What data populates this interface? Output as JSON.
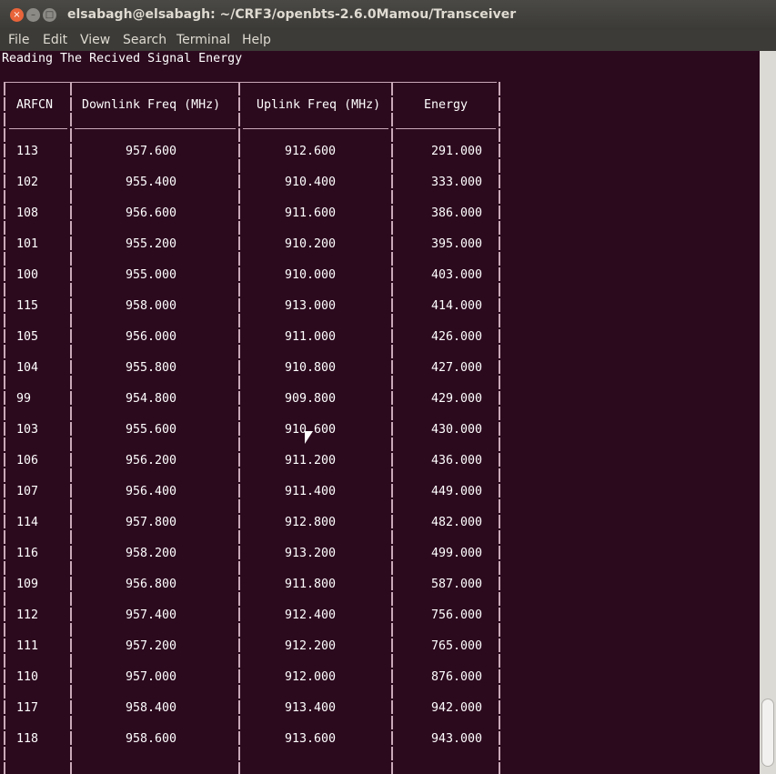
{
  "window": {
    "title": "elsabagh@elsabagh: ~/CRF3/openbts-2.6.0Mamou/Transceiver"
  },
  "menu": [
    "File",
    "Edit",
    "View",
    "Search",
    "Terminal",
    "Help"
  ],
  "terminal": {
    "heading": "Reading The Recived Signal Energy",
    "columns": [
      "ARFCN",
      "Downlink Freq (MHz)",
      "Uplink Freq (MHz)",
      "Energy"
    ],
    "rows": [
      [
        "113",
        "957.600",
        "912.600",
        "291.000"
      ],
      [
        "102",
        "955.400",
        "910.400",
        "333.000"
      ],
      [
        "108",
        "956.600",
        "911.600",
        "386.000"
      ],
      [
        "101",
        "955.200",
        "910.200",
        "395.000"
      ],
      [
        "100",
        "955.000",
        "910.000",
        "403.000"
      ],
      [
        "115",
        "958.000",
        "913.000",
        "414.000"
      ],
      [
        "105",
        "956.000",
        "911.000",
        "426.000"
      ],
      [
        "104",
        "955.800",
        "910.800",
        "427.000"
      ],
      [
        "99",
        "954.800",
        "909.800",
        "429.000"
      ],
      [
        "103",
        "955.600",
        "910.600",
        "430.000"
      ],
      [
        "106",
        "956.200",
        "911.200",
        "436.000"
      ],
      [
        "107",
        "956.400",
        "911.400",
        "449.000"
      ],
      [
        "114",
        "957.800",
        "912.800",
        "482.000"
      ],
      [
        "116",
        "958.200",
        "913.200",
        "499.000"
      ],
      [
        "109",
        "956.800",
        "911.800",
        "587.000"
      ],
      [
        "112",
        "957.400",
        "912.400",
        "756.000"
      ],
      [
        "111",
        "957.200",
        "912.200",
        "765.000"
      ],
      [
        "110",
        "957.000",
        "912.000",
        "876.000"
      ],
      [
        "117",
        "958.400",
        "913.400",
        "942.000"
      ],
      [
        "118",
        "958.600",
        "913.600",
        "943.000"
      ]
    ]
  },
  "colors": {
    "terminal_bg": "#2c0a1e",
    "close": "#e9643a"
  }
}
